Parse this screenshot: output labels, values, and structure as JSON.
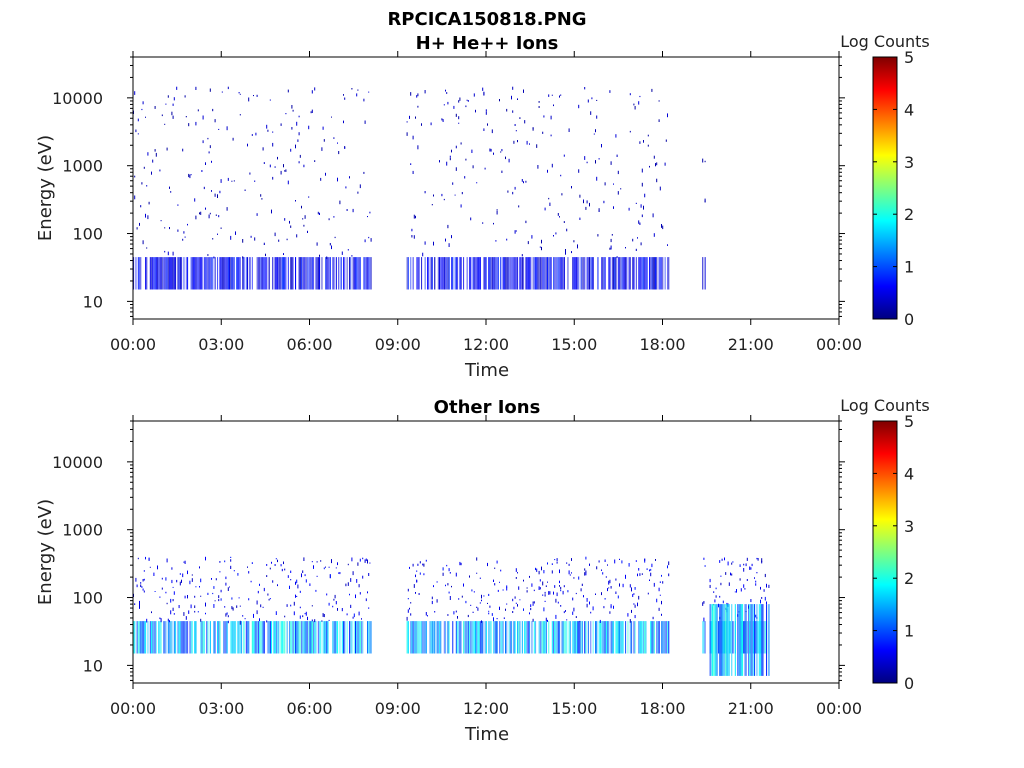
{
  "figure": {
    "title": "RPCICA150818.PNG"
  },
  "colors": {
    "colormap": [
      "#00007f",
      "#0000ff",
      "#007fff",
      "#00ffff",
      "#7fff7f",
      "#ffff00",
      "#ff7f00",
      "#ff0000",
      "#7f0000"
    ],
    "axis": "#000000",
    "background": "#ffffff"
  },
  "chart_data": [
    {
      "type": "heatmap",
      "title": "H+ He++ Ions",
      "xlabel": "Time",
      "ylabel": "Energy (eV)",
      "x_ticks": [
        "00:00",
        "03:00",
        "06:00",
        "09:00",
        "12:00",
        "15:00",
        "18:00",
        "21:00",
        "00:00"
      ],
      "x_range_hours": [
        0,
        24
      ],
      "y_scale": "log",
      "y_range": [
        5.5,
        40000
      ],
      "y_ticks": [
        10,
        100,
        1000,
        10000
      ],
      "y_tick_labels": [
        "10",
        "100",
        "1000",
        "10000"
      ],
      "colorbar": {
        "label": "Log Counts",
        "range": [
          0,
          5
        ],
        "ticks": [
          "0",
          "1",
          "2",
          "3",
          "4",
          "5"
        ]
      },
      "coverage_hours": [
        [
          0.0,
          8.1
        ],
        [
          9.3,
          18.2
        ],
        [
          19.35,
          19.45
        ]
      ],
      "bands": [
        {
          "energy_range_eV": [
            15,
            45
          ],
          "typical_log_counts": 0.6
        },
        {
          "energy_range_eV": [
            45,
            15000
          ],
          "typical_log_counts": 0.3,
          "note": "sparse"
        }
      ]
    },
    {
      "type": "heatmap",
      "title": "Other Ions",
      "xlabel": "Time",
      "ylabel": "Energy (eV)",
      "x_ticks": [
        "00:00",
        "03:00",
        "06:00",
        "09:00",
        "12:00",
        "15:00",
        "18:00",
        "21:00",
        "00:00"
      ],
      "x_range_hours": [
        0,
        24
      ],
      "y_scale": "log",
      "y_range": [
        5.5,
        40000
      ],
      "y_ticks": [
        10,
        100,
        1000,
        10000
      ],
      "y_tick_labels": [
        "10",
        "100",
        "1000",
        "10000"
      ],
      "colorbar": {
        "label": "Log Counts",
        "range": [
          0,
          5
        ],
        "ticks": [
          "0",
          "1",
          "2",
          "3",
          "4",
          "5"
        ]
      },
      "coverage_hours": [
        [
          0.0,
          8.1
        ],
        [
          9.3,
          18.2
        ],
        [
          19.35,
          19.45
        ],
        [
          19.6,
          21.6
        ]
      ],
      "bands": [
        {
          "energy_range_eV": [
            15,
            45
          ],
          "typical_log_counts": 1.5
        },
        {
          "energy_range_eV": [
            45,
            400
          ],
          "typical_log_counts": 0.5,
          "note": "sparse"
        },
        {
          "time_range_hours": [
            19.6,
            21.6
          ],
          "energy_range_eV": [
            7,
            80
          ],
          "typical_log_counts": 1.5
        }
      ]
    }
  ]
}
